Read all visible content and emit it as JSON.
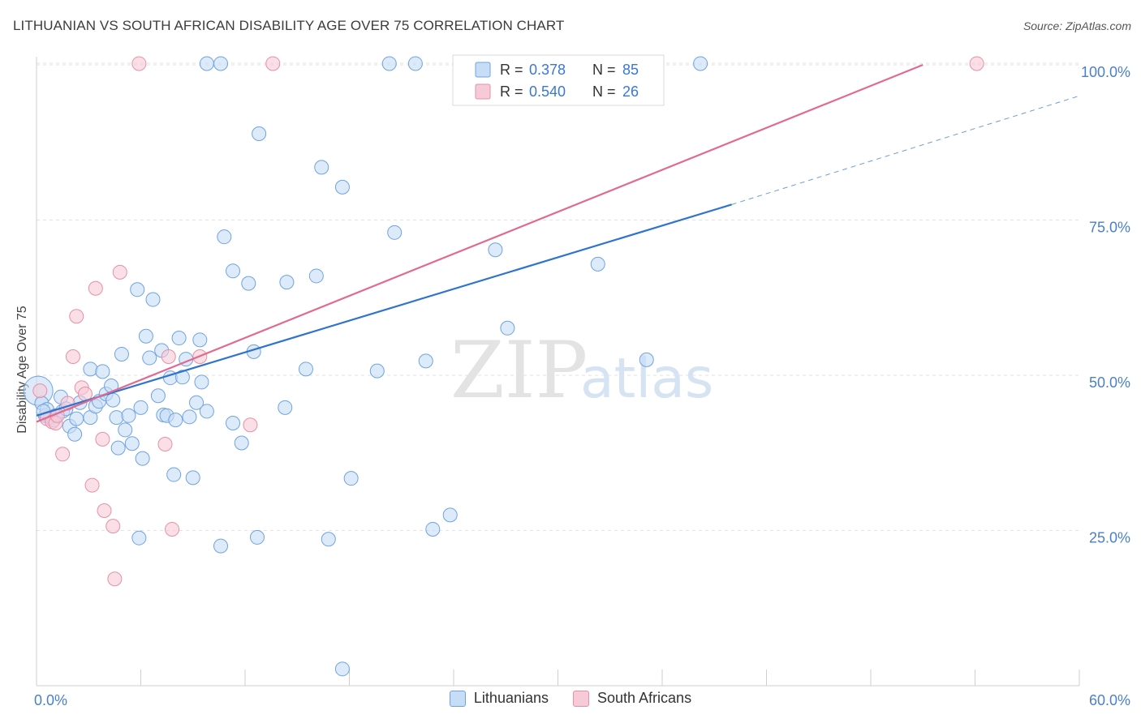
{
  "header": {
    "title": "LITHUANIAN VS SOUTH AFRICAN DISABILITY AGE OVER 75 CORRELATION CHART",
    "source": "Source: ZipAtlas.com"
  },
  "watermark": {
    "zip": "ZIP",
    "atlas": "atlas"
  },
  "chart_data": {
    "type": "scatter",
    "xlabel": "",
    "ylabel": "Disability Age Over 75",
    "xlim": [
      0,
      60
    ],
    "ylim": [
      0,
      105
    ],
    "x_tick_labels": [
      {
        "value": 0,
        "label": "0.0%"
      },
      {
        "value": 60,
        "label": "60.0%"
      }
    ],
    "y_tick_labels": [
      {
        "value": 25,
        "label": "25.0%"
      },
      {
        "value": 50,
        "label": "50.0%"
      },
      {
        "value": 75,
        "label": "75.0%"
      },
      {
        "value": 100,
        "label": "100.0%"
      }
    ],
    "grid": true,
    "legend_position": "top-center",
    "series": [
      {
        "name": "Lithuanians",
        "color": "#6fa3e0",
        "fill": "#c7dcf5",
        "line_color": "#2f74cc",
        "r": "0.378",
        "n": "85",
        "trend": {
          "x0": 0,
          "y0": 43.5,
          "x1": 40,
          "y1": 77.5,
          "dash_x1": 60,
          "dash_y1": 95
        },
        "points": [
          [
            0.1,
            47.5
          ],
          [
            0.3,
            45.5
          ],
          [
            0.5,
            43.5
          ],
          [
            0.6,
            44.5
          ],
          [
            0.8,
            43.2
          ],
          [
            1.0,
            42.8
          ],
          [
            1.1,
            43.5
          ],
          [
            1.4,
            46.5
          ],
          [
            1.5,
            44.2
          ],
          [
            1.7,
            44.6
          ],
          [
            1.9,
            41.8
          ],
          [
            2.2,
            40.5
          ],
          [
            2.3,
            43
          ],
          [
            2.5,
            45.6
          ],
          [
            3.1,
            43.2
          ],
          [
            3.1,
            51
          ],
          [
            3.4,
            45
          ],
          [
            3.6,
            45.8
          ],
          [
            3.8,
            50.6
          ],
          [
            4.0,
            47
          ],
          [
            4.3,
            48.3
          ],
          [
            4.4,
            46
          ],
          [
            4.6,
            43.2
          ],
          [
            4.7,
            38.3
          ],
          [
            4.9,
            53.4
          ],
          [
            5.1,
            41.2
          ],
          [
            5.3,
            43.5
          ],
          [
            5.5,
            39
          ],
          [
            5.8,
            63.8
          ],
          [
            6.0,
            44.8
          ],
          [
            5.9,
            23.8
          ],
          [
            6.1,
            36.6
          ],
          [
            6.3,
            56.3
          ],
          [
            6.5,
            52.8
          ],
          [
            6.7,
            62.2
          ],
          [
            7.0,
            46.7
          ],
          [
            7.2,
            54
          ],
          [
            7.3,
            43.6
          ],
          [
            7.5,
            43.5
          ],
          [
            7.7,
            49.6
          ],
          [
            7.9,
            34
          ],
          [
            8.0,
            42.8
          ],
          [
            8.2,
            56
          ],
          [
            8.4,
            49.7
          ],
          [
            8.6,
            52.6
          ],
          [
            8.8,
            43.3
          ],
          [
            9.0,
            33.5
          ],
          [
            9.2,
            45.6
          ],
          [
            9.4,
            55.7
          ],
          [
            9.5,
            48.9
          ],
          [
            9.8,
            44.2
          ],
          [
            10.6,
            22.5
          ],
          [
            10.8,
            72.3
          ],
          [
            11.3,
            42.3
          ],
          [
            11.3,
            66.8
          ],
          [
            11.8,
            39.1
          ],
          [
            12.2,
            64.8
          ],
          [
            12.5,
            53.8
          ],
          [
            12.7,
            23.9
          ],
          [
            12.8,
            88.9
          ],
          [
            14.3,
            44.8
          ],
          [
            14.4,
            65
          ],
          [
            15.5,
            51
          ],
          [
            16.1,
            66
          ],
          [
            16.4,
            83.5
          ],
          [
            16.8,
            23.6
          ],
          [
            17.6,
            80.3
          ],
          [
            18.1,
            33.4
          ],
          [
            19.6,
            50.7
          ],
          [
            20.6,
            73
          ],
          [
            22.4,
            52.3
          ],
          [
            22.8,
            25.2
          ],
          [
            23.8,
            27.5
          ],
          [
            26.4,
            70.2
          ],
          [
            27.1,
            57.6
          ],
          [
            32.3,
            67.9
          ],
          [
            35.1,
            52.5
          ],
          [
            17.6,
            2.7
          ],
          [
            9.8,
            100.2
          ],
          [
            10.6,
            100.2
          ],
          [
            20.3,
            100.2
          ],
          [
            21.8,
            100.2
          ],
          [
            25.3,
            100.2
          ],
          [
            38.2,
            100.2
          ],
          [
            0.4,
            44.2
          ]
        ]
      },
      {
        "name": "South Africans",
        "color": "#e690a8",
        "fill": "#f7cad7",
        "line_color": "#e06a92",
        "r": "0.540",
        "n": "26",
        "trend": {
          "x0": 0,
          "y0": 42.5,
          "x1": 51,
          "y1": 100
        },
        "points": [
          [
            0.2,
            47.5
          ],
          [
            0.6,
            43
          ],
          [
            0.9,
            42.5
          ],
          [
            1.1,
            42.3
          ],
          [
            1.2,
            43.5
          ],
          [
            1.5,
            37.3
          ],
          [
            1.8,
            45.5
          ],
          [
            2.1,
            53
          ],
          [
            2.3,
            59.5
          ],
          [
            2.6,
            48
          ],
          [
            2.8,
            47
          ],
          [
            3.2,
            32.3
          ],
          [
            3.4,
            64
          ],
          [
            3.8,
            39.7
          ],
          [
            3.9,
            28.2
          ],
          [
            4.4,
            25.7
          ],
          [
            4.5,
            17.2
          ],
          [
            4.8,
            66.6
          ],
          [
            7.4,
            38.9
          ],
          [
            7.6,
            53
          ],
          [
            7.8,
            25.2
          ],
          [
            9.4,
            53
          ],
          [
            12.3,
            42
          ],
          [
            5.9,
            100.2
          ],
          [
            13.6,
            100.2
          ],
          [
            54.1,
            100.2
          ]
        ]
      }
    ]
  }
}
